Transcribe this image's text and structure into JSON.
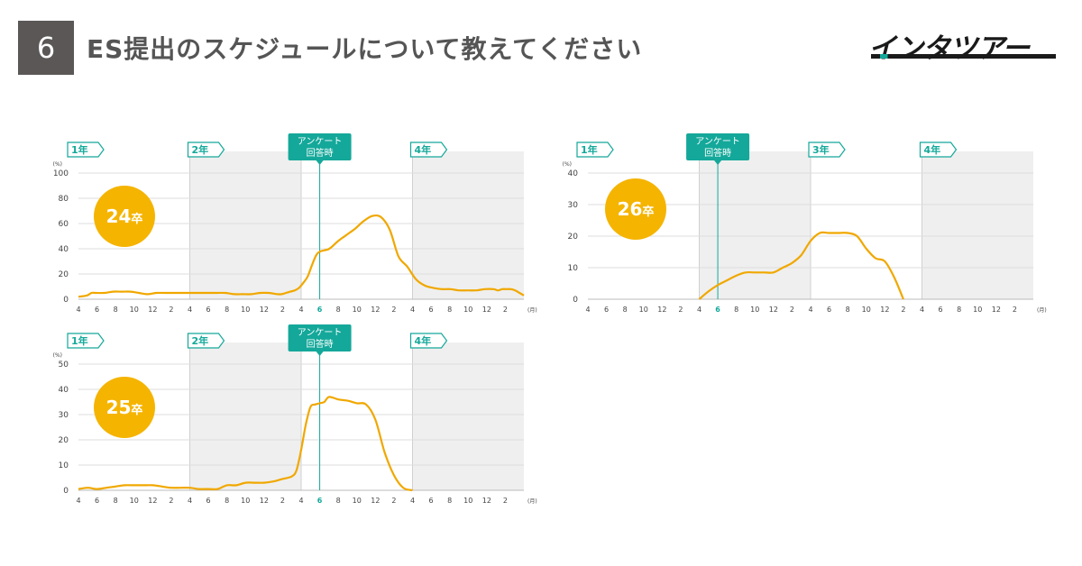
{
  "header": {
    "number": "6",
    "title": "ES提出のスケジュールについて教えてください"
  },
  "logo": {
    "text": "インタツアー"
  },
  "colors": {
    "line": "#f0a800",
    "badge": "#f5b400",
    "accent": "#14a89a",
    "shade": "#efefef",
    "header_box": "#5c5757",
    "title_text": "#555555"
  },
  "common": {
    "year_labels": [
      "1年",
      "2年",
      "3年",
      "4年"
    ],
    "survey_label": [
      "アンケート",
      "回答時"
    ],
    "x_tick_labels": [
      "4",
      "6",
      "8",
      "10",
      "12",
      "2",
      "4",
      "6",
      "8",
      "10",
      "12",
      "2",
      "4",
      "6",
      "8",
      "10",
      "12",
      "2",
      "4",
      "6",
      "8",
      "10",
      "12",
      "2"
    ],
    "x_unit": "(月)",
    "y_unit": "(%)"
  },
  "chart_data": [
    {
      "type": "line",
      "badge": "24卒",
      "ylim": [
        0,
        100
      ],
      "yticks": [
        0,
        20,
        40,
        60,
        80,
        100
      ],
      "survey_month_index": 26,
      "shaded_years": [
        2,
        4
      ],
      "x_index": [
        0,
        1,
        2,
        3,
        4,
        5,
        6,
        7,
        8,
        9,
        10,
        11,
        12,
        13,
        14,
        15,
        16,
        17,
        18,
        19,
        20,
        21,
        22,
        23,
        24,
        25,
        26,
        27,
        28,
        29,
        30,
        31,
        32,
        33,
        34,
        35,
        36,
        37,
        38,
        39,
        40,
        41,
        42,
        43,
        44,
        45,
        46,
        47,
        48
      ],
      "values": [
        2,
        3,
        5,
        5,
        5,
        6,
        6,
        6,
        5,
        4,
        5,
        5,
        5,
        5,
        5,
        5,
        5,
        5,
        5,
        4,
        4,
        4,
        5,
        5,
        4,
        4,
        5,
        6,
        7,
        9,
        13,
        18,
        27,
        35,
        38,
        40,
        46,
        51,
        56,
        62,
        66,
        65,
        55,
        34,
        26,
        16,
        11,
        9,
        8,
        8,
        7,
        7,
        7,
        8,
        8,
        7,
        8,
        8,
        8,
        7,
        5,
        3
      ],
      "x_values": [
        0,
        1,
        1.5,
        2,
        3,
        4,
        5,
        6,
        7,
        8,
        9,
        10,
        11,
        12,
        13,
        14,
        15,
        16,
        17,
        18,
        19,
        20,
        21,
        22,
        23,
        23.5,
        24,
        24.5,
        25,
        25.5,
        26,
        26.5,
        27,
        27.5,
        28,
        29,
        30,
        31,
        32,
        33,
        34,
        35,
        36,
        37,
        38,
        39,
        40,
        41,
        42,
        43,
        44,
        45,
        46,
        47,
        48,
        48.5,
        49,
        49.5,
        50,
        50.5,
        51,
        51.5
      ]
    },
    {
      "type": "line",
      "badge": "25卒",
      "ylim": [
        0,
        50
      ],
      "yticks": [
        0,
        10,
        20,
        30,
        40,
        50
      ],
      "survey_month_index": 26,
      "shaded_years": [
        2,
        4
      ],
      "x_values": [
        0,
        1,
        2,
        3,
        4,
        5,
        6,
        7,
        8,
        9,
        10,
        11,
        12,
        13,
        14,
        15,
        16,
        17,
        18,
        19,
        20,
        21,
        22,
        23,
        23.5,
        24,
        24.5,
        25,
        25.5,
        26,
        26.5,
        27,
        28,
        29,
        30,
        31,
        32,
        33,
        34,
        35,
        36
      ],
      "values": [
        0.5,
        1,
        0.5,
        1,
        1.5,
        2,
        2,
        2,
        2,
        1.5,
        1,
        1,
        1,
        0.5,
        0.5,
        0.5,
        2,
        2,
        3,
        3,
        3,
        3.5,
        4.5,
        5.5,
        8,
        16,
        26,
        33,
        34,
        34.5,
        35,
        37,
        36,
        35.5,
        34.5,
        34,
        28,
        15,
        6,
        1,
        0
      ]
    },
    {
      "type": "line",
      "badge": "26卒",
      "ylim": [
        0,
        40
      ],
      "yticks": [
        0,
        10,
        20,
        30,
        40
      ],
      "survey_month_index": 14,
      "shaded_years": [
        2,
        4
      ],
      "x_values": [
        12,
        13,
        14,
        15,
        16,
        17,
        18,
        19,
        20,
        21,
        22,
        23,
        24,
        25,
        26,
        27,
        28,
        29,
        30,
        31,
        32,
        33,
        34
      ],
      "values": [
        0,
        2.5,
        4.5,
        6,
        7.5,
        8.5,
        8.5,
        8.5,
        8.5,
        10,
        11.5,
        14,
        18.5,
        21,
        21,
        21,
        21,
        20,
        16,
        13,
        12,
        7,
        0
      ]
    }
  ]
}
